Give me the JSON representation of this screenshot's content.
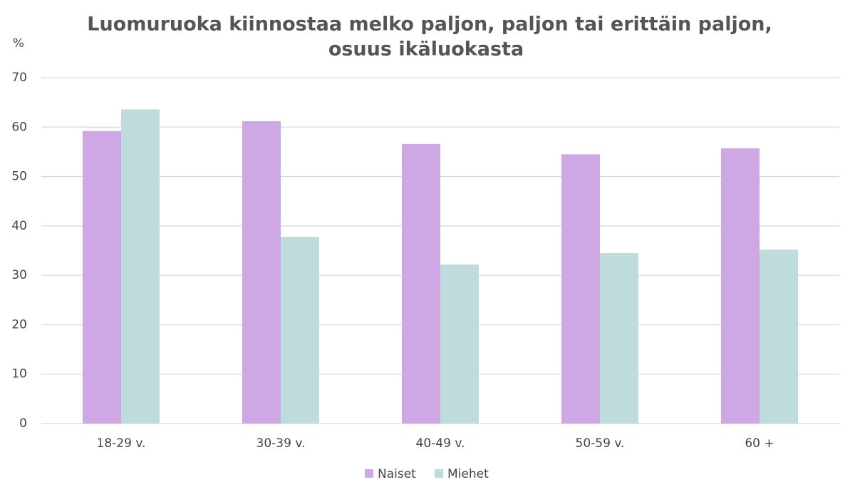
{
  "chart_data": {
    "type": "bar",
    "title": [
      "Luomuruoka kiinnostaa melko paljon, paljon tai erittäin paljon,",
      "osuus ikäluokasta"
    ],
    "ylabel": "%",
    "categories": [
      "18-29 v.",
      "30-39 v.",
      "40-49 v.",
      "50-59 v.",
      "60 +"
    ],
    "series": [
      {
        "name": "Naiset",
        "color": "#cda8e4",
        "values": [
          59.2,
          61.2,
          56.6,
          54.5,
          55.7
        ]
      },
      {
        "name": "Miehet",
        "color": "#bfdcdc",
        "values": [
          63.6,
          37.8,
          32.2,
          34.5,
          35.2
        ]
      }
    ],
    "ylim": [
      0,
      70
    ],
    "yticks": [
      0,
      10,
      20,
      30,
      40,
      50,
      60,
      70
    ],
    "grid": true,
    "legend": "bottom"
  }
}
